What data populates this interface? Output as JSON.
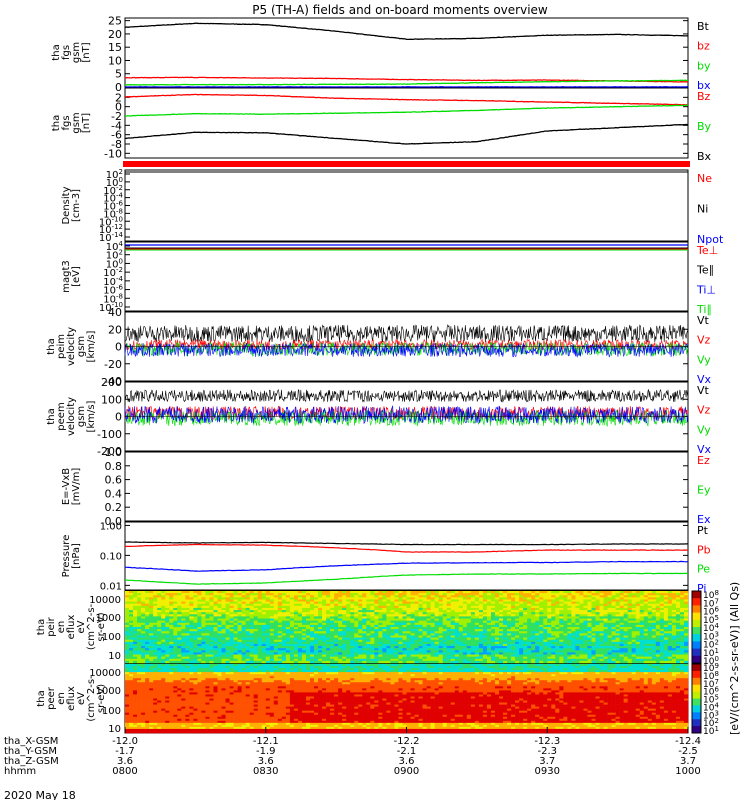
{
  "title": "P5 (TH-A) fields and on-board moments overview",
  "time_axis": {
    "start": "0800",
    "end": "1000",
    "date": "2020 May 18",
    "rows": [
      {
        "label": "tha_X-GSM",
        "values": [
          "-12.0",
          "-12.1",
          "-12.2",
          "-12.3",
          "-12.4"
        ]
      },
      {
        "label": "tha_Y-GSM",
        "values": [
          "-1.7",
          "-1.9",
          "-2.1",
          "-2.3",
          "-2.5"
        ]
      },
      {
        "label": "tha_Z-GSM",
        "values": [
          "3.6",
          "3.6",
          "3.6",
          "3.7",
          "3.7"
        ]
      },
      {
        "label": "hhmm",
        "values": [
          "0800",
          "0830",
          "0900",
          "0930",
          "1000"
        ]
      }
    ]
  },
  "colors": {
    "black": "#000000",
    "red": "#ff0000",
    "green": "#00dd00",
    "blue": "#0000ff"
  },
  "colorbar_label": "[eV/(cm^2-s-sr-eV)] (All Qs)",
  "chart_data": [
    {
      "type": "line",
      "ylabel": [
        "tha",
        "fgs",
        "gsm",
        "[nT]"
      ],
      "ylim": [
        0,
        26
      ],
      "yticks": [
        0,
        5,
        10,
        15,
        20,
        25
      ],
      "grid": false,
      "series": [
        {
          "name": "Bt",
          "color": "black",
          "x": [
            "0800",
            "0815",
            "0830",
            "0845",
            "0900",
            "0915",
            "0930",
            "0945",
            "1000"
          ],
          "values": [
            22.5,
            24.0,
            23.5,
            21.0,
            18.0,
            18.3,
            19.5,
            19.8,
            19.3
          ]
        },
        {
          "name": "bz",
          "color": "red",
          "x": [
            "0800",
            "0815",
            "0830",
            "0845",
            "0900",
            "0915",
            "0930",
            "0945",
            "1000"
          ],
          "values": [
            3.5,
            3.6,
            3.4,
            3.2,
            2.8,
            2.5,
            2.6,
            2.3,
            1.9
          ]
        },
        {
          "name": "by",
          "color": "green",
          "x": [
            "0800",
            "0815",
            "0830",
            "0845",
            "0900",
            "0915",
            "0930",
            "0945",
            "1000"
          ],
          "values": [
            0.8,
            0.9,
            0.9,
            1.0,
            1.1,
            1.6,
            2.0,
            2.3,
            2.5
          ]
        },
        {
          "name": "bx",
          "color": "blue",
          "x": [
            "0800",
            "1000"
          ],
          "values": [
            0.0,
            0.0
          ]
        }
      ]
    },
    {
      "type": "line",
      "ylabel": [
        "tha",
        "fgs",
        "gsm",
        "[nT]"
      ],
      "ylim": [
        -11,
        4
      ],
      "yticks": [
        -10,
        -8,
        -6,
        -4,
        -2,
        0,
        2
      ],
      "series": [
        {
          "name": "Bz",
          "color": "red",
          "x": [
            "0800",
            "0815",
            "0830",
            "0845",
            "0900",
            "0915",
            "0930",
            "0945",
            "1000"
          ],
          "values": [
            2.1,
            2.6,
            2.4,
            1.8,
            1.5,
            1.3,
            1.0,
            0.7,
            0.4
          ]
        },
        {
          "name": "By",
          "color": "green",
          "x": [
            "0800",
            "0815",
            "0830",
            "0845",
            "0900",
            "0915",
            "0930",
            "0945",
            "1000"
          ],
          "values": [
            -2.0,
            -1.5,
            -1.6,
            -1.4,
            -1.2,
            -0.8,
            -0.3,
            0.0,
            0.3
          ]
        },
        {
          "name": "Bx",
          "color": "black",
          "x": [
            "0800",
            "0815",
            "0830",
            "0845",
            "0900",
            "0915",
            "0930",
            "0945",
            "1000"
          ],
          "values": [
            -6.8,
            -5.5,
            -5.6,
            -6.8,
            -8.0,
            -7.5,
            -5.2,
            -4.5,
            -3.8
          ]
        }
      ]
    },
    {
      "type": "line",
      "scale": "log",
      "ylabel": [
        "Density",
        "[cm-3]"
      ],
      "yticks": [
        "10^2",
        "10^0",
        "10^-2",
        "10^-4",
        "10^-6",
        "10^-8",
        "10^-10",
        "10^-12",
        "10^-14"
      ],
      "series": [
        {
          "name": "Ne",
          "color": "red"
        },
        {
          "name": "Ni",
          "color": "black"
        },
        {
          "name": "Npot",
          "color": "blue"
        }
      ]
    },
    {
      "type": "line",
      "scale": "log",
      "ylabel": [
        "magt3",
        "[eV]"
      ],
      "yticks": [
        "10^4",
        "10^2",
        "10^0",
        "10^-2",
        "10^-4",
        "10^-6",
        "10^-8",
        "10^-10"
      ],
      "series": [
        {
          "name": "Te⊥",
          "color": "red"
        },
        {
          "name": "Te∥",
          "color": "black"
        },
        {
          "name": "Ti⊥",
          "color": "blue"
        },
        {
          "name": "Ti∥",
          "color": "green"
        }
      ]
    },
    {
      "type": "line",
      "ylabel": [
        "tha",
        "peim",
        "velocity",
        "gsm",
        "[km/s]"
      ],
      "ylim": [
        -40,
        40
      ],
      "yticks": [
        -40,
        -20,
        0,
        20,
        40
      ],
      "series": [
        {
          "name": "Vt",
          "color": "black",
          "mean": 15,
          "spread": 10
        },
        {
          "name": "Vz",
          "color": "red",
          "mean": 2,
          "spread": 6
        },
        {
          "name": "Vy",
          "color": "green",
          "mean": -3,
          "spread": 8
        },
        {
          "name": "Vx",
          "color": "blue",
          "mean": -4,
          "spread": 8
        }
      ]
    },
    {
      "type": "line",
      "ylabel": [
        "tha",
        "peem",
        "velocity",
        "gsm",
        "[km/s]"
      ],
      "ylim": [
        -200,
        200
      ],
      "yticks": [
        -200,
        -100,
        0,
        100,
        200
      ],
      "series": [
        {
          "name": "Vt",
          "color": "black",
          "mean": 120,
          "spread": 35
        },
        {
          "name": "Vz",
          "color": "red",
          "mean": 20,
          "spread": 40
        },
        {
          "name": "Vy",
          "color": "green",
          "mean": -10,
          "spread": 45
        },
        {
          "name": "Vx",
          "color": "blue",
          "mean": 10,
          "spread": 50
        }
      ]
    },
    {
      "type": "line",
      "ylabel": [
        "E=-VxB",
        "[mV/m]"
      ],
      "ylim": [
        0,
        1
      ],
      "yticks": [
        "0.0",
        "0.2",
        "0.4",
        "0.6",
        "0.8",
        "1.0"
      ],
      "series": [
        {
          "name": "Ez",
          "color": "red"
        },
        {
          "name": "Ey",
          "color": "green"
        },
        {
          "name": "Ex",
          "color": "blue"
        }
      ]
    },
    {
      "type": "line",
      "scale": "log",
      "ylabel": [
        "Pressure",
        "[nPa]"
      ],
      "ylim": [
        0.007,
        1.3
      ],
      "yticks": [
        "1.00",
        "0.10",
        "0.01"
      ],
      "series": [
        {
          "name": "Pt",
          "color": "black",
          "x": [
            "0800",
            "0815",
            "0830",
            "0845",
            "0900",
            "0915",
            "0930",
            "0945",
            "1000"
          ],
          "values": [
            0.28,
            0.26,
            0.27,
            0.25,
            0.23,
            0.23,
            0.23,
            0.24,
            0.24
          ]
        },
        {
          "name": "Pb",
          "color": "red",
          "x": [
            "0800",
            "0815",
            "0830",
            "0845",
            "0900",
            "0915",
            "0930",
            "0945",
            "1000"
          ],
          "values": [
            0.2,
            0.23,
            0.22,
            0.18,
            0.13,
            0.13,
            0.15,
            0.15,
            0.15
          ]
        },
        {
          "name": "Pe",
          "color": "green",
          "x": [
            "0800",
            "0815",
            "0830",
            "0845",
            "0900",
            "0915",
            "0930",
            "0945",
            "1000"
          ],
          "values": [
            0.015,
            0.011,
            0.012,
            0.016,
            0.022,
            0.024,
            0.024,
            0.025,
            0.025
          ]
        },
        {
          "name": "Pi",
          "color": "blue",
          "x": [
            "0800",
            "0815",
            "0830",
            "0845",
            "0900",
            "0915",
            "0930",
            "0945",
            "1000"
          ],
          "values": [
            0.04,
            0.03,
            0.033,
            0.045,
            0.055,
            0.057,
            0.058,
            0.062,
            0.062
          ]
        }
      ]
    },
    {
      "type": "heatmap",
      "ylabel": [
        "tha",
        "peir",
        "en",
        "eflux",
        "eV",
        "(cm^2-s-",
        "sr-eV)"
      ],
      "yticks": [
        "10000",
        "1000",
        "100",
        "10"
      ],
      "colorbar_ticks": [
        "10^8",
        "10^7",
        "10^6",
        "10^5",
        "10^4",
        "10^3",
        "10^2",
        "10^1",
        "10^0"
      ]
    },
    {
      "type": "heatmap",
      "ylabel": [
        "tha",
        "peer",
        "en",
        "eflux",
        "eV",
        "(cm^2-s-",
        "sr-eV)"
      ],
      "yticks": [
        "10000",
        "1000",
        "100",
        "10"
      ],
      "colorbar_ticks": [
        "10^9",
        "10^8",
        "10^7",
        "10^6",
        "10^5",
        "10^4",
        "10^3",
        "10^2",
        "10^1"
      ]
    }
  ]
}
